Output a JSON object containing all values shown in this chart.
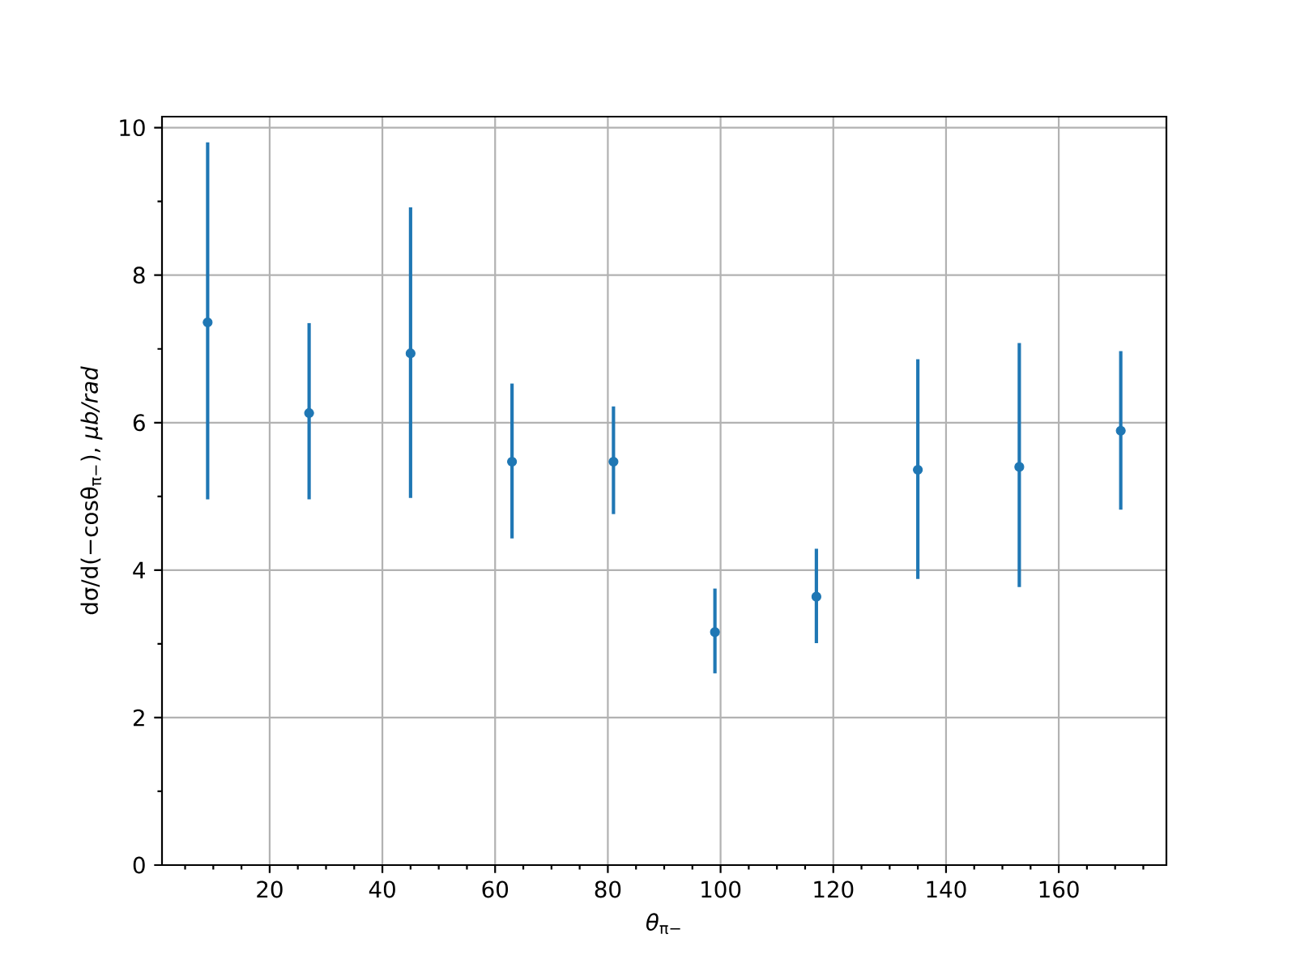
{
  "chart_data": {
    "type": "scatter",
    "xlabel": "*θ*$_{π−}$",
    "ylabel": "dσ/d(−cosθ$_{π−}$), *μb/rad*",
    "x": [
      9,
      27,
      45,
      63,
      81,
      99,
      117,
      135,
      153,
      171
    ],
    "series": [
      {
        "color": "#1f77b4",
        "values": [
          7.36,
          6.13,
          6.94,
          5.47,
          5.47,
          3.16,
          3.64,
          5.36,
          5.4,
          5.89
        ],
        "errors": [
          [
            4.96,
            9.8
          ],
          [
            4.96,
            7.35
          ],
          [
            4.98,
            8.92
          ],
          [
            4.43,
            6.53
          ],
          [
            4.76,
            6.22
          ],
          [
            2.6,
            3.75
          ],
          [
            3.01,
            4.29
          ],
          [
            3.88,
            6.86
          ],
          [
            3.77,
            7.08
          ],
          [
            4.82,
            6.97
          ]
        ]
      }
    ],
    "xlim": [
      0.9,
      179.1
    ],
    "ylim": [
      0,
      10.15
    ],
    "xticks": [
      20,
      40,
      60,
      80,
      100,
      120,
      140,
      160,
      {
        "value": 5,
        "label": null
      },
      {
        "value": 10,
        "label": null
      },
      {
        "value": 15,
        "label": null
      },
      {
        "value": 25,
        "label": null
      },
      {
        "value": 30,
        "label": null
      },
      {
        "value": 35,
        "label": null
      },
      {
        "value": 45,
        "label": null
      },
      {
        "value": 50,
        "label": null
      },
      {
        "value": 55,
        "label": null
      },
      {
        "value": 65,
        "label": null
      },
      {
        "value": 70,
        "label": null
      },
      {
        "value": 75,
        "label": null
      },
      {
        "value": 85,
        "label": null
      },
      {
        "value": 90,
        "label": null
      },
      {
        "value": 95,
        "label": null
      },
      {
        "value": 105,
        "label": null
      },
      {
        "value": 110,
        "label": null
      },
      {
        "value": 115,
        "label": null
      },
      {
        "value": 125,
        "label": null
      },
      {
        "value": 130,
        "label": null
      },
      {
        "value": 135,
        "label": null
      },
      {
        "value": 145,
        "label": null
      },
      {
        "value": 150,
        "label": null
      },
      {
        "value": 155,
        "label": null
      },
      {
        "value": 165,
        "label": null
      },
      {
        "value": 170,
        "label": null
      },
      {
        "value": 175,
        "label": null
      }
    ],
    "yticks": [
      0,
      2,
      4,
      6,
      8,
      10,
      {
        "value": 1,
        "label": null
      },
      {
        "value": 3,
        "label": null
      },
      {
        "value": 5,
        "label": null
      },
      {
        "value": 7,
        "label": null
      },
      {
        "value": 9,
        "label": null
      }
    ],
    "grid": true,
    "marker": "circle"
  }
}
